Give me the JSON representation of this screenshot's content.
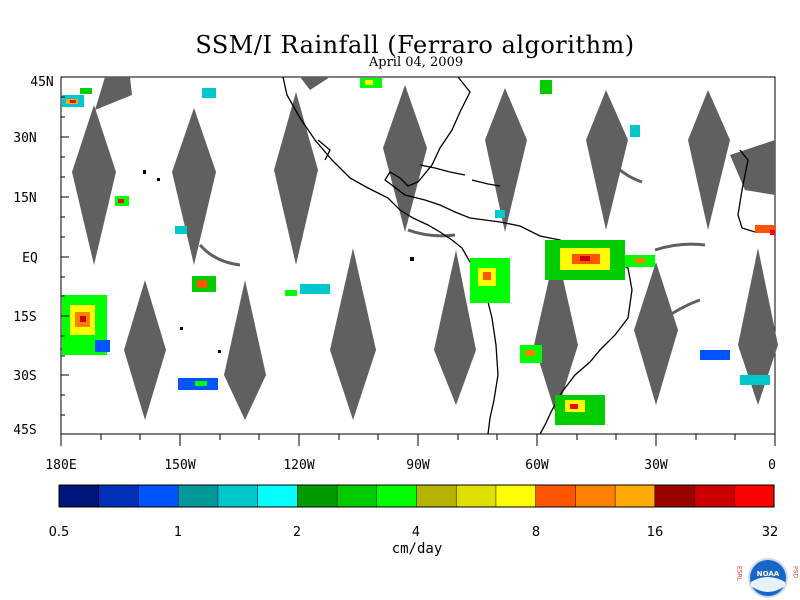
{
  "title": "SSM/I Rainfall (Ferraro algorithm)",
  "date": "April 04, 2009",
  "lat_labels": [
    "45N",
    "30N",
    "15N",
    "EQ",
    "15S",
    "30S",
    "45S"
  ],
  "lon_labels": [
    "180E",
    "150W",
    "120W",
    "90W",
    "60W",
    "30W",
    "0"
  ],
  "colorbar": {
    "unit": "cm/day",
    "tick_labels": [
      "0.5",
      "1",
      "2",
      "4",
      "8",
      "16",
      "32"
    ],
    "colors": [
      "#00157a",
      "#0031b8",
      "#0054ff",
      "#009999",
      "#00c8cc",
      "#00ffff",
      "#009900",
      "#00cc00",
      "#00ff00",
      "#b3b300",
      "#e0e000",
      "#ffff00",
      "#ff5500",
      "#ff8000",
      "#ffaa00",
      "#990000",
      "#cc0000",
      "#ff0000"
    ]
  },
  "colors": {
    "missing_data": "#606060",
    "coast": "#000000"
  },
  "logo": {
    "left_text": "ESRL",
    "right_text": "PSD",
    "emblem_text": "NOAA"
  }
}
